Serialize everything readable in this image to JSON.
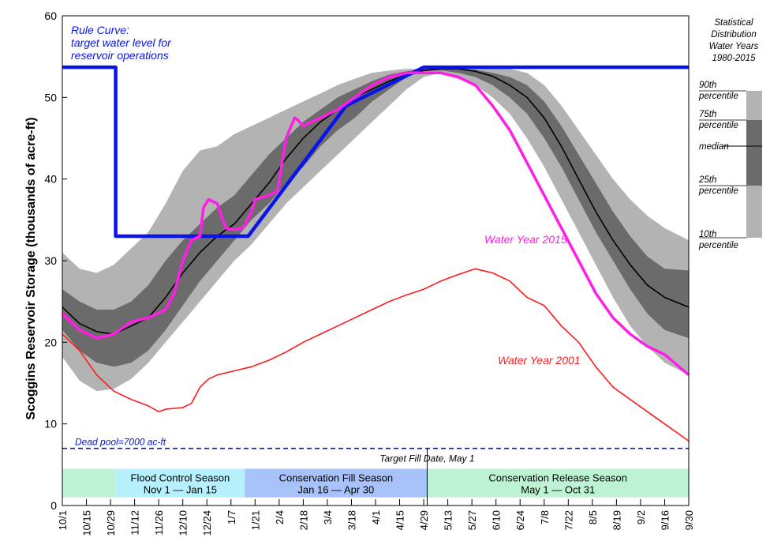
{
  "chart_data": {
    "type": "area",
    "ylabel": "Scoggins Reservoir Storage (thousands of acre-ft)",
    "ylim": [
      0,
      60
    ],
    "yticks": [
      0,
      10,
      20,
      30,
      40,
      50,
      60
    ],
    "xlim": [
      0,
      364
    ],
    "xtick_labels": [
      "10/1",
      "10/15",
      "10/29",
      "11/12",
      "11/26",
      "12/10",
      "12/24",
      "1/7",
      "1/21",
      "2/4",
      "2/18",
      "3/4",
      "3/18",
      "4/1",
      "4/15",
      "4/29",
      "5/13",
      "5/27",
      "6/10",
      "6/24",
      "7/8",
      "7/22",
      "8/5",
      "8/19",
      "9/2",
      "9/16",
      "9/30"
    ],
    "xtick_days": [
      0,
      14,
      28,
      42,
      56,
      70,
      84,
      98,
      112,
      126,
      140,
      154,
      168,
      182,
      196,
      210,
      224,
      238,
      252,
      266,
      280,
      294,
      308,
      322,
      336,
      350,
      364
    ],
    "percentile_bands": {
      "x": [
        0,
        10,
        20,
        30,
        40,
        50,
        60,
        70,
        80,
        90,
        100,
        110,
        120,
        130,
        140,
        150,
        160,
        170,
        180,
        190,
        200,
        210,
        220,
        230,
        240,
        250,
        260,
        270,
        280,
        290,
        300,
        310,
        320,
        330,
        340,
        350,
        364
      ],
      "p10": [
        18.2,
        15.3,
        14.0,
        14.3,
        15.5,
        17.5,
        20.0,
        22.5,
        25.0,
        27.5,
        30.0,
        32.0,
        34.5,
        37.0,
        39.0,
        41.0,
        43.0,
        45.0,
        47.0,
        49.0,
        51.0,
        52.5,
        53.0,
        52.5,
        51.5,
        50.0,
        48.0,
        45.0,
        41.5,
        37.5,
        33.5,
        29.5,
        25.5,
        22.0,
        19.5,
        17.5,
        16.0
      ],
      "p25": [
        21.5,
        19.0,
        17.5,
        17.0,
        17.5,
        19.0,
        21.5,
        24.5,
        27.5,
        30.0,
        32.5,
        35.0,
        37.0,
        39.5,
        41.5,
        44.0,
        46.0,
        47.5,
        49.5,
        51.0,
        52.5,
        53.2,
        53.3,
        53.0,
        52.5,
        51.5,
        50.0,
        48.0,
        45.0,
        41.5,
        37.5,
        33.5,
        30.0,
        26.5,
        23.5,
        21.5,
        20.5
      ],
      "median": [
        24.3,
        22.3,
        21.3,
        21.0,
        22.0,
        23.0,
        25.5,
        28.5,
        31.0,
        33.0,
        34.5,
        37.0,
        39.5,
        42.5,
        45.0,
        47.0,
        48.5,
        50.0,
        51.0,
        52.0,
        52.8,
        53.3,
        53.5,
        53.5,
        53.2,
        52.6,
        51.5,
        50.0,
        47.5,
        44.0,
        40.0,
        36.0,
        32.5,
        29.5,
        27.0,
        25.5,
        24.3
      ],
      "p75": [
        26.5,
        25.0,
        24.0,
        24.0,
        25.0,
        27.0,
        30.0,
        32.5,
        34.5,
        36.5,
        38.0,
        40.5,
        43.0,
        45.0,
        47.0,
        48.5,
        50.0,
        51.0,
        52.0,
        52.8,
        53.2,
        53.5,
        53.5,
        53.5,
        53.4,
        53.0,
        52.5,
        51.5,
        49.5,
        46.5,
        43.0,
        39.5,
        36.0,
        33.0,
        30.5,
        29.0,
        28.8
      ],
      "p90": [
        31.0,
        29.0,
        28.5,
        29.5,
        31.5,
        33.5,
        37.0,
        41.0,
        43.5,
        44.0,
        45.5,
        46.5,
        47.5,
        48.5,
        49.5,
        50.5,
        51.5,
        52.3,
        53.0,
        53.3,
        53.5,
        53.5,
        53.5,
        53.5,
        53.5,
        53.5,
        53.5,
        53.0,
        51.5,
        49.0,
        46.0,
        43.0,
        40.0,
        37.5,
        35.5,
        34.0,
        32.5
      ]
    },
    "series": [
      {
        "name": "Rule Curve",
        "color": "#0a14e6",
        "x": [
          0,
          31,
          31,
          108,
          165,
          210,
          364
        ],
        "values": [
          53.7,
          53.7,
          33.0,
          33.0,
          49.0,
          53.7,
          53.7
        ]
      },
      {
        "name": "Water Year 2015",
        "color": "#ff1ee6",
        "x": [
          0,
          10,
          20,
          30,
          40,
          50,
          60,
          65,
          70,
          75,
          80,
          82,
          85,
          90,
          95,
          100,
          105,
          110,
          112,
          120,
          125,
          130,
          135,
          137,
          140,
          145,
          150,
          160,
          170,
          180,
          190,
          200,
          210,
          220,
          230,
          240,
          250,
          260,
          270,
          280,
          290,
          300,
          310,
          320,
          330,
          340,
          350,
          364
        ],
        "values": [
          23.5,
          21.5,
          20.5,
          21.0,
          22.5,
          23.0,
          24.0,
          26.0,
          30.0,
          32.5,
          33.0,
          36.5,
          37.5,
          37.0,
          34.0,
          33.8,
          34.0,
          36.0,
          37.5,
          38.0,
          38.5,
          45.0,
          47.5,
          47.2,
          46.5,
          47.0,
          47.5,
          48.5,
          50.0,
          51.5,
          52.5,
          53.0,
          53.0,
          53.0,
          52.5,
          51.5,
          49.0,
          46.0,
          42.0,
          38.0,
          34.0,
          30.0,
          26.0,
          23.0,
          21.0,
          19.5,
          18.5,
          16.0
        ]
      },
      {
        "name": "Water Year 2001",
        "color": "#ff1a1a",
        "x": [
          0,
          10,
          20,
          30,
          40,
          50,
          56,
          60,
          70,
          75,
          80,
          85,
          90,
          100,
          110,
          120,
          130,
          140,
          150,
          160,
          170,
          180,
          190,
          200,
          210,
          220,
          230,
          240,
          250,
          260,
          270,
          280,
          290,
          300,
          310,
          320,
          330,
          340,
          350,
          364
        ],
        "values": [
          21.0,
          19.0,
          16.0,
          14.0,
          13.0,
          12.2,
          11.5,
          11.8,
          12.0,
          12.5,
          14.5,
          15.5,
          16.0,
          16.5,
          17.0,
          17.8,
          18.8,
          20.0,
          21.0,
          22.0,
          23.0,
          24.0,
          25.0,
          25.8,
          26.5,
          27.5,
          28.3,
          29.0,
          28.5,
          27.5,
          25.5,
          24.5,
          22.0,
          20.0,
          17.0,
          14.5,
          13.0,
          11.5,
          10.0,
          7.9
        ]
      }
    ],
    "dead_pool": {
      "value": 7.0,
      "label": "Dead pool=7000 ac-ft"
    },
    "target_fill": {
      "x": 212,
      "label": "Target Fill Date, May 1"
    },
    "seasons": [
      {
        "name": "Flood Control Season",
        "range": "Nov 1 — Jan 15",
        "start": 31,
        "end": 106,
        "color": "#b6f0fd"
      },
      {
        "name": "Conservation Fill Season",
        "range": "Jan 16 — Apr 30",
        "start": 106,
        "end": 212,
        "color": "#a8c2fa"
      },
      {
        "name": "Conservation Release Season",
        "range": "May 1 — Oct 31",
        "start": 212,
        "end": 364,
        "color": "#bdf3d4"
      }
    ],
    "season_pre_color": "#bdf3d4",
    "annotations": {
      "rule_curve": [
        "Rule Curve:",
        "target water level for",
        "reservoir operations"
      ],
      "wy2015": "Water Year 2015",
      "wy2001": "Water Year 2001"
    },
    "legend": {
      "title": [
        "Statistical",
        "Distribution",
        "Water Years",
        "1980-2015"
      ],
      "labels": [
        {
          "id": "p90",
          "lines": [
            "90th",
            "percentile"
          ]
        },
        {
          "id": "p75",
          "lines": [
            "75th",
            "percentile"
          ]
        },
        {
          "id": "median",
          "lines": [
            "median"
          ]
        },
        {
          "id": "p25",
          "lines": [
            "25th",
            "percentile"
          ]
        },
        {
          "id": "p10",
          "lines": [
            "10th",
            "percentile"
          ]
        }
      ]
    },
    "colors": {
      "band_outer": "#b3b3b3",
      "band_inner": "#6b6b6b",
      "median": "#000000",
      "dead_pool": "#0a14c8"
    }
  }
}
